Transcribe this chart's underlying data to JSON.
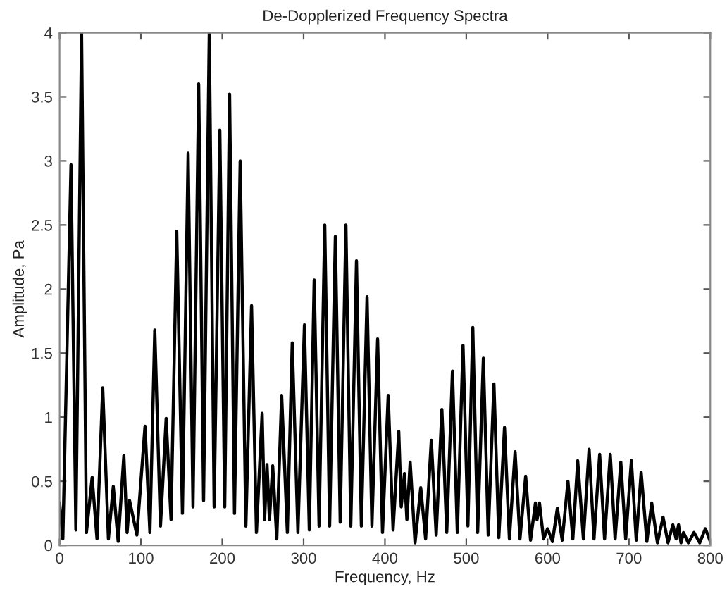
{
  "chart_data": {
    "type": "line",
    "title": "De-Dopplerized Frequency Spectra",
    "xlabel": "Frequency, Hz",
    "ylabel": "Amplitude, Pa",
    "series": [
      {
        "color": "#000000",
        "x": [
          0,
          4,
          14,
          20,
          27,
          33,
          40,
          46,
          53,
          60,
          66,
          72,
          79,
          83,
          86,
          95,
          105,
          111,
          117,
          124,
          131,
          137,
          144,
          151,
          158,
          164,
          171,
          177,
          184,
          190,
          197,
          203,
          209,
          215,
          222,
          229,
          236,
          242,
          249,
          252,
          255,
          258,
          262,
          267,
          273,
          280,
          286,
          293,
          301,
          307,
          313,
          319,
          326,
          332,
          339,
          345,
          352,
          358,
          365,
          371,
          378,
          384,
          391,
          397,
          404,
          410,
          417,
          420,
          424,
          427,
          431,
          437,
          444,
          450,
          457,
          463,
          470,
          476,
          483,
          489,
          496,
          502,
          508,
          514,
          521,
          527,
          534,
          540,
          547,
          553,
          560,
          566,
          573,
          579,
          585,
          587,
          590,
          595,
          600,
          606,
          612,
          618,
          625,
          631,
          637,
          644,
          651,
          657,
          664,
          670,
          677,
          683,
          690,
          696,
          703,
          709,
          715,
          722,
          728,
          735,
          742,
          748,
          754,
          758,
          761,
          764,
          767,
          773,
          780,
          787,
          794,
          800
        ],
        "values": [
          0.33,
          0.05,
          2.97,
          0.12,
          4.0,
          0.1,
          0.53,
          0.05,
          1.23,
          0.05,
          0.46,
          0.03,
          0.7,
          0.1,
          0.35,
          0.08,
          0.93,
          0.1,
          1.68,
          0.15,
          0.99,
          0.2,
          2.45,
          0.25,
          3.06,
          0.3,
          3.6,
          0.35,
          4.0,
          0.3,
          3.24,
          0.3,
          3.52,
          0.25,
          3.0,
          0.15,
          1.87,
          0.1,
          1.03,
          0.2,
          0.63,
          0.2,
          0.62,
          0.05,
          1.17,
          0.1,
          1.58,
          0.1,
          1.72,
          0.12,
          2.07,
          0.15,
          2.5,
          0.15,
          2.41,
          0.18,
          2.5,
          0.15,
          2.22,
          0.15,
          1.94,
          0.15,
          1.61,
          0.1,
          1.17,
          0.12,
          0.89,
          0.3,
          0.56,
          0.2,
          0.65,
          0.02,
          0.45,
          0.05,
          0.82,
          0.08,
          1.06,
          0.1,
          1.36,
          0.1,
          1.56,
          0.15,
          1.7,
          0.1,
          1.46,
          0.08,
          1.26,
          0.06,
          0.92,
          0.05,
          0.73,
          0.05,
          0.54,
          0.04,
          0.33,
          0.2,
          0.33,
          0.05,
          0.13,
          0.03,
          0.29,
          0.04,
          0.5,
          0.05,
          0.66,
          0.05,
          0.75,
          0.05,
          0.71,
          0.05,
          0.71,
          0.05,
          0.65,
          0.05,
          0.66,
          0.04,
          0.57,
          0.03,
          0.33,
          0.02,
          0.22,
          0.02,
          0.16,
          0.05,
          0.16,
          0.02,
          0.1,
          0.02,
          0.1,
          0.02,
          0.13,
          0.03
        ]
      }
    ],
    "xlim": [
      0,
      800
    ],
    "ylim": [
      0,
      4
    ],
    "xticks": [
      0,
      100,
      200,
      300,
      400,
      500,
      600,
      700,
      800
    ],
    "yticks": [
      0,
      0.5,
      1,
      1.5,
      2,
      2.5,
      3,
      3.5,
      4
    ],
    "grid": false,
    "marker": "none",
    "line_style": "solid"
  }
}
